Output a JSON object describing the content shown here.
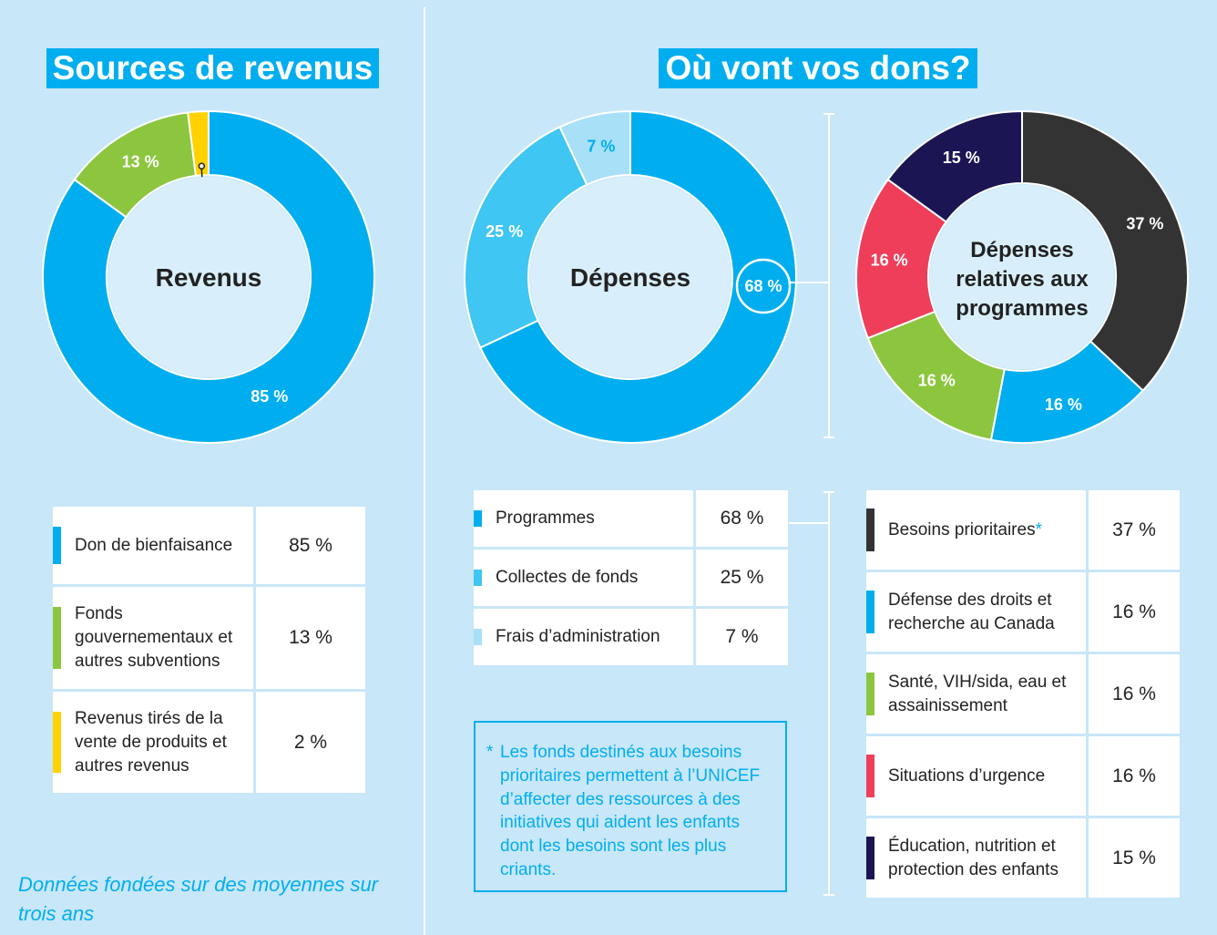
{
  "left": {
    "heading": "Sources de revenus",
    "center_label": "Revenus",
    "table": [
      {
        "label": "Don de bienfaisance",
        "value": "85 %",
        "color": "#00aeef"
      },
      {
        "label": "Fonds gouvernementaux et autres subventions",
        "value": "13 %",
        "color": "#8cc63f"
      },
      {
        "label": "Revenus tirés de la vente de produits et autres revenus",
        "value": "2 %",
        "color": "#ffd200"
      }
    ]
  },
  "right": {
    "heading": "Où vont vos dons?",
    "depenses_center_label": "Dépenses",
    "programmes_center_label": "Dépenses relatives aux programmes",
    "depenses_table": [
      {
        "label": "Programmes",
        "value": "68 %",
        "color": "#00aeef"
      },
      {
        "label": "Collectes de fonds",
        "value": "25 %",
        "color": "#3fc6f2"
      },
      {
        "label": "Frais d’administration",
        "value": "7 %",
        "color": "#a8e0f8"
      }
    ],
    "programmes_table": [
      {
        "label": "Besoins prioritaires",
        "star": "*",
        "value": "37 %",
        "color": "#333333"
      },
      {
        "label": "Défense des droits et recherche au Canada",
        "star": "",
        "value": "16 %",
        "color": "#00aeef"
      },
      {
        "label": "Santé, VIH/sida, eau et assainissement",
        "star": "",
        "value": "16 %",
        "color": "#8cc63f"
      },
      {
        "label": "Situations d’urgence",
        "star": "",
        "value": "16 %",
        "color": "#ef3e5a"
      },
      {
        "label": "Éducation, nutrition et protection des enfants",
        "star": "",
        "value": "15 %",
        "color": "#1b1554"
      }
    ],
    "note": {
      "asterisk": "*",
      "text": "Les fonds destinés aux besoins prioritaires permettent à l’UNICEF d’affecter des ressources à des initiatives qui aident les enfants dont les besoins sont les plus criants."
    }
  },
  "footer": "Données fondées sur des moyennes sur trois ans",
  "chart_data": [
    {
      "type": "pie",
      "center_text": "Revenus",
      "labels": [
        "Don de bienfaisance",
        "Fonds gouvernementaux et autres subventions",
        "Revenus tirés de la vente de produits et autres revenus"
      ],
      "values": [
        85,
        13,
        2
      ],
      "data_labels": [
        "85 %",
        "13 %",
        "2 %"
      ],
      "colors": [
        "#00aeef",
        "#8cc63f",
        "#ffd200"
      ]
    },
    {
      "type": "pie",
      "center_text": "Dépenses",
      "labels": [
        "Programmes",
        "Collectes de fonds",
        "Frais d’administration"
      ],
      "values": [
        68,
        25,
        7
      ],
      "data_labels": [
        "68 %",
        "25 %",
        "7 %"
      ],
      "colors": [
        "#00aeef",
        "#3fc6f2",
        "#a8e0f8"
      ]
    },
    {
      "type": "pie",
      "center_text": "Dépenses relatives aux programmes",
      "labels": [
        "Besoins prioritaires",
        "Défense des droits et recherche au Canada",
        "Santé, VIH/sida, eau et assainissement",
        "Situations d’urgence",
        "Éducation, nutrition et protection des enfants"
      ],
      "values": [
        37,
        16,
        16,
        16,
        15
      ],
      "data_labels": [
        "37 %",
        "16 %",
        "16 %",
        "16 %",
        "15 %"
      ],
      "colors": [
        "#333333",
        "#00aeef",
        "#8cc63f",
        "#ef3e5a",
        "#1b1554"
      ]
    }
  ]
}
